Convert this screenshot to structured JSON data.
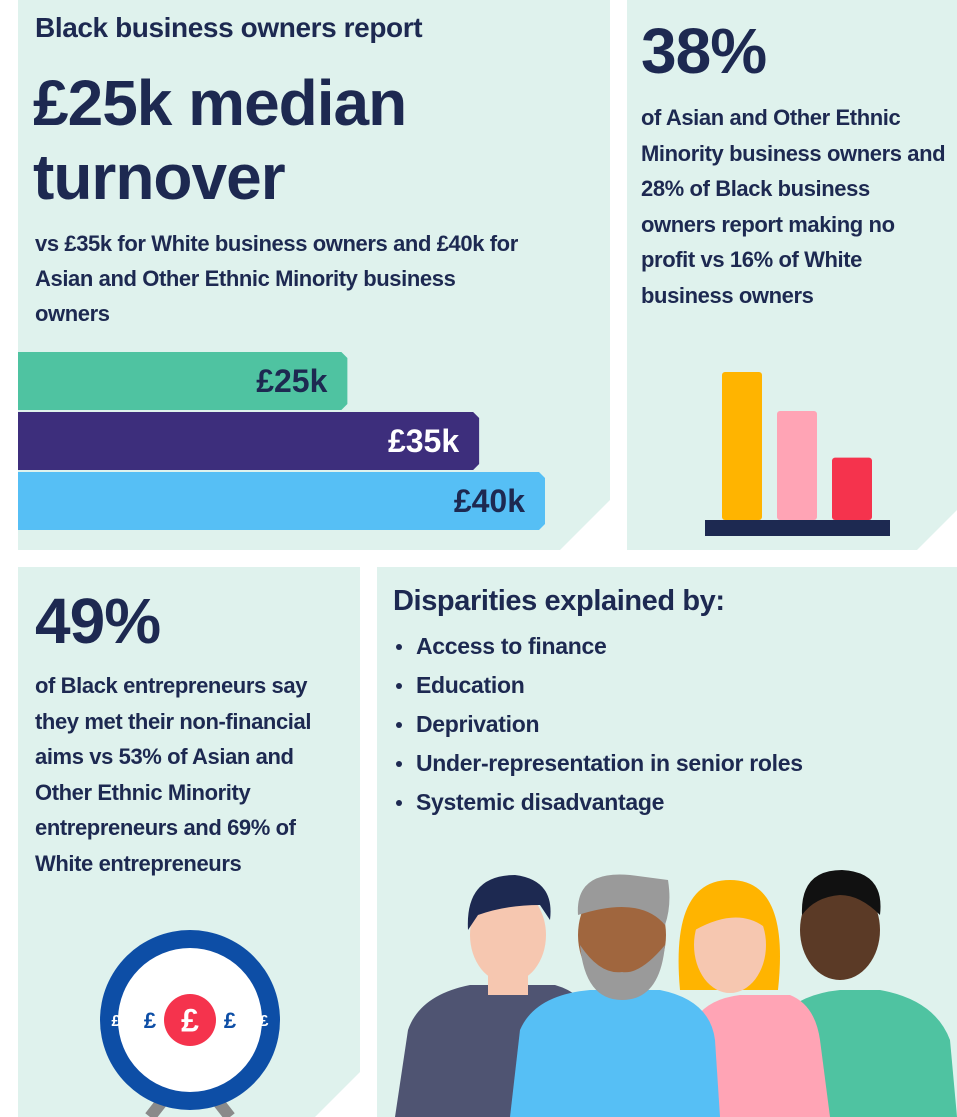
{
  "turnover": {
    "intro": "Black business owners report",
    "headline": "£25k median turnover",
    "body": "vs £35k for White business owners and £40k for Asian and Other Ethnic Minority business owners",
    "chart": {
      "type": "bar",
      "values": [
        25,
        35,
        40
      ],
      "value_labels": [
        "£25k",
        "£35k",
        "£40k"
      ],
      "colors": [
        "#4fc3a1",
        "#3d2e7c",
        "#56bff5"
      ],
      "label_colors": [
        "#1d2951",
        "#ffffff",
        "#1d2951"
      ]
    }
  },
  "no_profit": {
    "stat": "38%",
    "body": "of Asian and Other Ethnic Minority business owners and 28% of Black business owners report making no profit vs 16% of White business owners",
    "chart": {
      "type": "bar",
      "values": [
        38,
        28,
        16
      ],
      "colors": [
        "#ffb400",
        "#ffa4b5",
        "#f5334d"
      ]
    }
  },
  "aims": {
    "stat": "49%",
    "body": "of Black entrepreneurs say they met their non-financial aims vs 53% of Asian and Other Ethnic Minority entrepreneurs and 69% of White entrepreneurs",
    "icon_symbol": "£"
  },
  "disparities": {
    "heading": "Disparities explained by:",
    "items": [
      "Access to finance",
      "Education",
      "Deprivation",
      "Under-representation in senior roles",
      "Systemic disadvantage"
    ]
  }
}
